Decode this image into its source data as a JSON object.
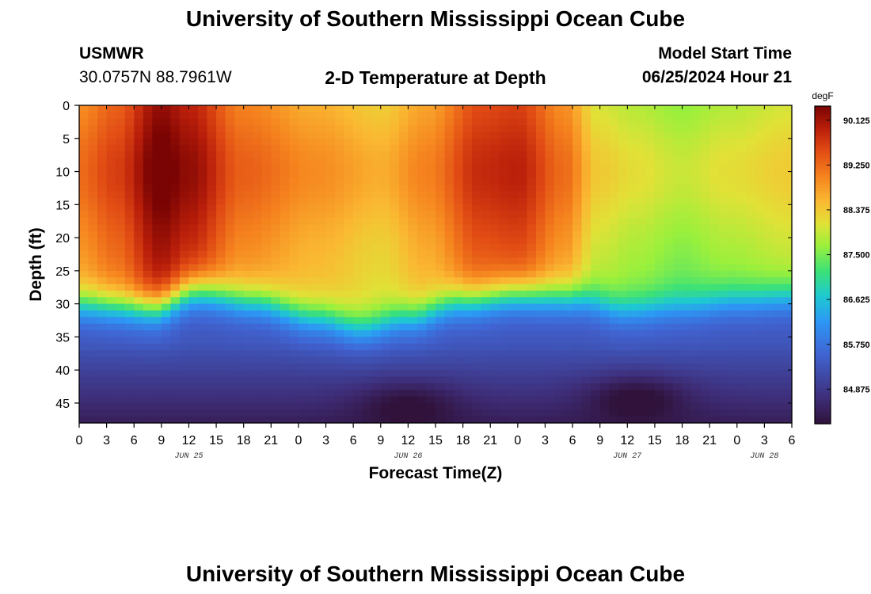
{
  "page": {
    "title_top": "University of Southern Mississippi Ocean Cube",
    "title_bottom": "University of Southern Mississippi Ocean Cube",
    "station_id": "USMWR",
    "station_coords": "30.0757N  88.7961W",
    "chart_title": "2-D Temperature at Depth",
    "model_label": "Model Start Time",
    "model_time": "06/25/2024 Hour 21"
  },
  "chart_data": {
    "type": "heatmap",
    "title": "2-D Temperature at Depth",
    "xlabel": "Forecast Time(Z)",
    "ylabel": "Depth (ft)",
    "x_ticks": [
      "0",
      "3",
      "6",
      "9",
      "12",
      "15",
      "18",
      "21",
      "0",
      "3",
      "6",
      "9",
      "12",
      "15",
      "18",
      "21",
      "0",
      "3",
      "6",
      "9",
      "12",
      "15",
      "18",
      "21",
      "0",
      "3",
      "6"
    ],
    "x_range_hours": [
      0,
      78
    ],
    "date_labels": [
      {
        "label": "JUN 25",
        "hour": 12
      },
      {
        "label": "JUN 26",
        "hour": 36
      },
      {
        "label": "JUN 27",
        "hour": 60
      },
      {
        "label": "JUN 28",
        "hour": 75
      }
    ],
    "y_ticks": [
      "0",
      "5",
      "10",
      "15",
      "20",
      "25",
      "30",
      "35",
      "40",
      "45"
    ],
    "y_range_ft": [
      0,
      48
    ],
    "colorbar": {
      "unit": "degF",
      "min": 84.2,
      "max": 90.4,
      "tick_labels": [
        "90.125",
        "89.250",
        "88.375",
        "87.500",
        "86.625",
        "85.750",
        "84.875"
      ],
      "tick_values": [
        90.125,
        89.25,
        88.375,
        87.5,
        86.625,
        85.75,
        84.875
      ]
    },
    "surface_temp_by_hour": [
      {
        "hour": 0,
        "value": 88.9
      },
      {
        "hour": 4,
        "value": 89.3
      },
      {
        "hour": 9,
        "value": 90.2
      },
      {
        "hour": 12,
        "value": 89.9
      },
      {
        "hour": 18,
        "value": 89.0
      },
      {
        "hour": 26,
        "value": 88.6
      },
      {
        "hour": 33,
        "value": 88.3
      },
      {
        "hour": 38,
        "value": 88.7
      },
      {
        "hour": 44,
        "value": 89.5
      },
      {
        "hour": 48,
        "value": 89.6
      },
      {
        "hour": 53,
        "value": 88.9
      },
      {
        "hour": 57,
        "value": 88.0
      },
      {
        "hour": 61,
        "value": 87.8
      },
      {
        "hour": 66,
        "value": 87.6
      },
      {
        "hour": 71,
        "value": 87.8
      },
      {
        "hour": 78,
        "value": 88.0
      }
    ],
    "thermocline_depth_ft_by_hour": [
      {
        "hour": 0,
        "value": 30.0
      },
      {
        "hour": 8,
        "value": 30.5
      },
      {
        "hour": 13,
        "value": 28.0
      },
      {
        "hour": 19,
        "value": 29.5
      },
      {
        "hour": 26,
        "value": 32.0
      },
      {
        "hour": 31,
        "value": 33.5
      },
      {
        "hour": 36,
        "value": 32.0
      },
      {
        "hour": 42,
        "value": 29.5
      },
      {
        "hour": 48,
        "value": 28.5
      },
      {
        "hour": 54,
        "value": 29.0
      },
      {
        "hour": 60,
        "value": 31.0
      },
      {
        "hour": 66,
        "value": 30.5
      },
      {
        "hour": 72,
        "value": 29.5
      },
      {
        "hour": 78,
        "value": 29.0
      }
    ],
    "deep_cold_cores": [
      {
        "hour": 36,
        "depth_ft": 45,
        "value": 84.4
      },
      {
        "hour": 61,
        "depth_ft": 44,
        "value": 84.3
      }
    ]
  }
}
